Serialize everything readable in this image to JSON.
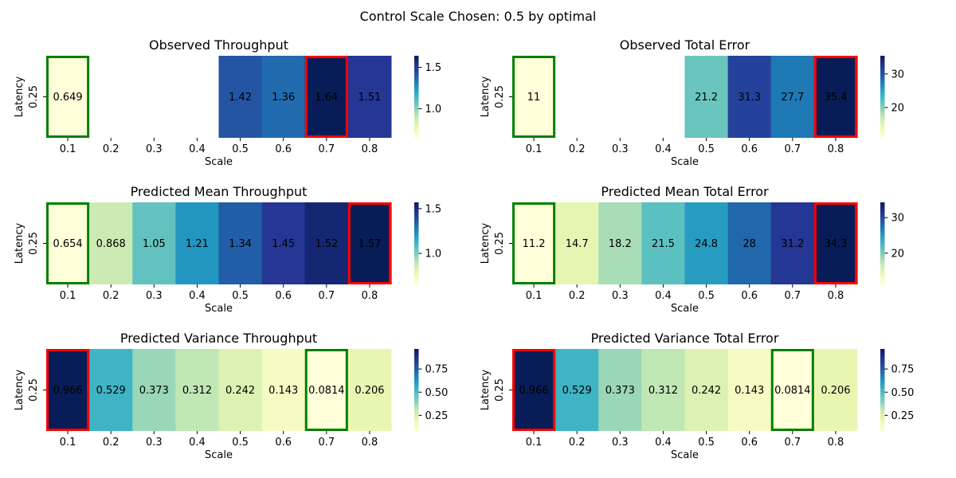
{
  "suptitle": "Control Scale Chosen: 0.5 by optimal",
  "colormap": [
    "#ffffd9",
    "#edf8b1",
    "#c7e9b4",
    "#7fcdbb",
    "#41b6c4",
    "#1d91c0",
    "#225ea8",
    "#253494",
    "#081d58"
  ],
  "highlight_colors": {
    "min": "#008000",
    "max": "#ff0000"
  },
  "chart_data": [
    {
      "type": "heatmap",
      "title": "Observed Throughput",
      "xlabel": "Scale",
      "ylabel": "Latency",
      "x": [
        "0.1",
        "0.2",
        "0.3",
        "0.4",
        "0.5",
        "0.6",
        "0.7",
        "0.8"
      ],
      "y": [
        "0.25"
      ],
      "values": [
        0.649,
        null,
        null,
        null,
        1.42,
        1.36,
        1.64,
        1.51
      ],
      "labels": [
        "0.649",
        "",
        "",
        "",
        "1.42",
        "1.36",
        "1.64",
        "1.51"
      ],
      "vmin": 0.649,
      "vmax": 1.64,
      "colorbar_ticks": [
        "1.0",
        "1.5"
      ],
      "colorbar_tick_values": [
        1.0,
        1.5
      ],
      "green_box_index": 0,
      "red_box_index": 6
    },
    {
      "type": "heatmap",
      "title": "Observed Total Error",
      "xlabel": "Scale",
      "ylabel": "Latency",
      "x": [
        "0.1",
        "0.2",
        "0.3",
        "0.4",
        "0.5",
        "0.6",
        "0.7",
        "0.8"
      ],
      "y": [
        "0.25"
      ],
      "values": [
        11,
        null,
        null,
        null,
        21.2,
        31.3,
        27.7,
        35.4
      ],
      "labels": [
        "11",
        "",
        "",
        "",
        "21.2",
        "31.3",
        "27.7",
        "35.4"
      ],
      "vmin": 11,
      "vmax": 35.4,
      "colorbar_ticks": [
        "20",
        "30"
      ],
      "colorbar_tick_values": [
        20,
        30
      ],
      "green_box_index": 0,
      "red_box_index": 7
    },
    {
      "type": "heatmap",
      "title": "Predicted Mean Throughput",
      "xlabel": "Scale",
      "ylabel": "Latency",
      "x": [
        "0.1",
        "0.2",
        "0.3",
        "0.4",
        "0.5",
        "0.6",
        "0.7",
        "0.8"
      ],
      "y": [
        "0.25"
      ],
      "values": [
        0.654,
        0.868,
        1.05,
        1.21,
        1.34,
        1.45,
        1.52,
        1.57
      ],
      "labels": [
        "0.654",
        "0.868",
        "1.05",
        "1.21",
        "1.34",
        "1.45",
        "1.52",
        "1.57"
      ],
      "vmin": 0.654,
      "vmax": 1.57,
      "colorbar_ticks": [
        "1.0",
        "1.5"
      ],
      "colorbar_tick_values": [
        1.0,
        1.5
      ],
      "green_box_index": 0,
      "red_box_index": 7
    },
    {
      "type": "heatmap",
      "title": "Predicted Mean Total Error",
      "xlabel": "Scale",
      "ylabel": "Latency",
      "x": [
        "0.1",
        "0.2",
        "0.3",
        "0.4",
        "0.5",
        "0.6",
        "0.7",
        "0.8"
      ],
      "y": [
        "0.25"
      ],
      "values": [
        11.2,
        14.7,
        18.2,
        21.5,
        24.8,
        28,
        31.2,
        34.3
      ],
      "labels": [
        "11.2",
        "14.7",
        "18.2",
        "21.5",
        "24.8",
        "28",
        "31.2",
        "34.3"
      ],
      "vmin": 11.2,
      "vmax": 34.3,
      "colorbar_ticks": [
        "20",
        "30"
      ],
      "colorbar_tick_values": [
        20,
        30
      ],
      "green_box_index": 0,
      "red_box_index": 7
    },
    {
      "type": "heatmap",
      "title": "Predicted Variance Throughput",
      "xlabel": "Scale",
      "ylabel": "Latency",
      "x": [
        "0.1",
        "0.2",
        "0.3",
        "0.4",
        "0.5",
        "0.6",
        "0.7",
        "0.8"
      ],
      "y": [
        "0.25"
      ],
      "values": [
        0.966,
        0.529,
        0.373,
        0.312,
        0.242,
        0.143,
        0.0814,
        0.206
      ],
      "labels": [
        "0.966",
        "0.529",
        "0.373",
        "0.312",
        "0.242",
        "0.143",
        "0.0814",
        "0.206"
      ],
      "vmin": 0.0814,
      "vmax": 0.966,
      "colorbar_ticks": [
        "0.25",
        "0.50",
        "0.75"
      ],
      "colorbar_tick_values": [
        0.25,
        0.5,
        0.75
      ],
      "green_box_index": 6,
      "red_box_index": 0
    },
    {
      "type": "heatmap",
      "title": "Predicted Variance Total Error",
      "xlabel": "Scale",
      "ylabel": "Latency",
      "x": [
        "0.1",
        "0.2",
        "0.3",
        "0.4",
        "0.5",
        "0.6",
        "0.7",
        "0.8"
      ],
      "y": [
        "0.25"
      ],
      "values": [
        0.966,
        0.529,
        0.373,
        0.312,
        0.242,
        0.143,
        0.0814,
        0.206
      ],
      "labels": [
        "0.966",
        "0.529",
        "0.373",
        "0.312",
        "0.242",
        "0.143",
        "0.0814",
        "0.206"
      ],
      "vmin": 0.0814,
      "vmax": 0.966,
      "colorbar_ticks": [
        "0.25",
        "0.50",
        "0.75"
      ],
      "colorbar_tick_values": [
        0.25,
        0.5,
        0.75
      ],
      "green_box_index": 6,
      "red_box_index": 0
    }
  ]
}
